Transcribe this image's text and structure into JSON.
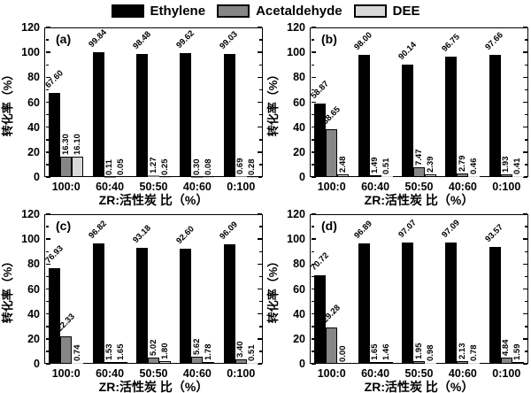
{
  "legend": [
    {
      "name": "Ethylene",
      "color": "#000000"
    },
    {
      "name": "Acetaldehyde",
      "color": "#868686"
    },
    {
      "name": "DEE",
      "color": "#d8d8d8"
    }
  ],
  "axes": {
    "ylabel": "转化率（%）",
    "xlabel": "ZR:活性炭 比（%）",
    "ylim": [
      0,
      120
    ],
    "ytick_step": 20,
    "ytick_minor_step": 10,
    "categories": [
      "100:0",
      "60:40",
      "50:50",
      "40:60",
      "0:100"
    ]
  },
  "chart_data": [
    {
      "type": "bar",
      "panel_label": "(a)",
      "categories": [
        "100:0",
        "60:40",
        "50:50",
        "40:60",
        "0:100"
      ],
      "series": [
        {
          "name": "Ethylene",
          "values": [
            67.6,
            99.84,
            98.48,
            99.62,
            99.03
          ],
          "labels": [
            "67.60",
            "99.84",
            "98.48",
            "99.62",
            "99.03"
          ]
        },
        {
          "name": "Acetaldehyde",
          "values": [
            16.3,
            0.11,
            1.27,
            0.3,
            0.69
          ],
          "labels": [
            "16.30",
            "0.11",
            "1.27",
            "0.30",
            "0.69"
          ]
        },
        {
          "name": "DEE",
          "values": [
            16.1,
            0.05,
            0.25,
            0.08,
            0.28
          ],
          "labels": [
            "16.10",
            "0.05",
            "0.25",
            "0.08",
            "0.28"
          ]
        }
      ]
    },
    {
      "type": "bar",
      "panel_label": "(b)",
      "categories": [
        "100:0",
        "60:40",
        "50:50",
        "40:60",
        "0:100"
      ],
      "series": [
        {
          "name": "Ethylene",
          "values": [
            58.87,
            98.0,
            90.14,
            96.75,
            97.66
          ],
          "labels": [
            "58.87",
            "98.00",
            "90.14",
            "96.75",
            "97.66"
          ]
        },
        {
          "name": "Acetaldehyde",
          "values": [
            38.65,
            1.49,
            7.47,
            2.79,
            1.93
          ],
          "labels": [
            "38.65",
            "1.49",
            "7.47",
            "2.79",
            "1.93"
          ]
        },
        {
          "name": "DEE",
          "values": [
            2.48,
            0.51,
            2.39,
            0.46,
            0.41
          ],
          "labels": [
            "2.48",
            "0.51",
            "2.39",
            "0.46",
            "0.41"
          ]
        }
      ]
    },
    {
      "type": "bar",
      "panel_label": "(c)",
      "categories": [
        "100:0",
        "60:40",
        "50:50",
        "40:60",
        "0:100"
      ],
      "series": [
        {
          "name": "Ethylene",
          "values": [
            76.93,
            96.82,
            93.18,
            92.6,
            96.09
          ],
          "labels": [
            "76.93",
            "96.82",
            "93.18",
            "92.60",
            "96.09"
          ]
        },
        {
          "name": "Acetaldehyde",
          "values": [
            22.33,
            1.53,
            5.02,
            5.62,
            3.4
          ],
          "labels": [
            "22.33",
            "1.53",
            "5.02",
            "5.62",
            "3.40"
          ]
        },
        {
          "name": "DEE",
          "values": [
            0.74,
            1.65,
            1.8,
            1.78,
            0.51
          ],
          "labels": [
            "0.74",
            "1.65",
            "1.80",
            "1.78",
            "0.51"
          ]
        }
      ]
    },
    {
      "type": "bar",
      "panel_label": "(d)",
      "categories": [
        "100:0",
        "60:40",
        "50:50",
        "40:60",
        "0:100"
      ],
      "series": [
        {
          "name": "Ethylene",
          "values": [
            70.72,
            96.89,
            97.07,
            97.09,
            93.57
          ],
          "labels": [
            "70.72",
            "96.89",
            "97.07",
            "97.09",
            "93.57"
          ]
        },
        {
          "name": "Acetaldehyde",
          "values": [
            29.28,
            1.65,
            1.95,
            2.13,
            4.84
          ],
          "labels": [
            "29.28",
            "1.65",
            "1.95",
            "2.13",
            "4.84"
          ]
        },
        {
          "name": "DEE",
          "values": [
            0.0,
            1.46,
            0.98,
            0.78,
            1.59
          ],
          "labels": [
            "0.00",
            "1.46",
            "0.98",
            "0.78",
            "1.59"
          ]
        }
      ]
    }
  ]
}
